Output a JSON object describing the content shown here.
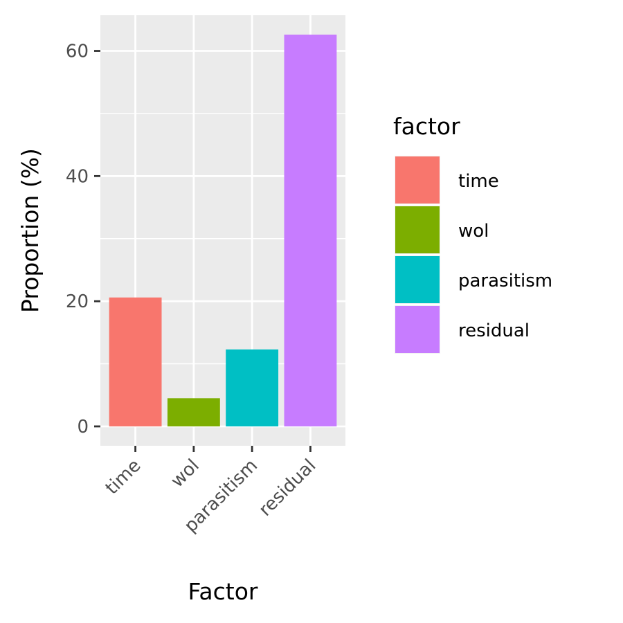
{
  "chart_data": {
    "type": "bar",
    "categories": [
      "time",
      "wol",
      "parasitism",
      "residual"
    ],
    "values": [
      20.6,
      4.5,
      12.3,
      62.6
    ],
    "colors": [
      "#F8766D",
      "#7CAE00",
      "#00BFC4",
      "#C77CFF"
    ],
    "xlabel": "Factor",
    "ylabel": "Proportion (%)",
    "ylim": [
      -3.1,
      65.7
    ],
    "yticks": [
      0,
      20,
      40,
      60
    ],
    "grid": true,
    "panel_background": "#EBEBEB",
    "grid_color": "#FFFFFF",
    "x_tick_rotation_deg": 45,
    "legend": {
      "title": "factor",
      "position": "right",
      "entries": [
        "time",
        "wol",
        "parasitism",
        "residual"
      ]
    }
  }
}
